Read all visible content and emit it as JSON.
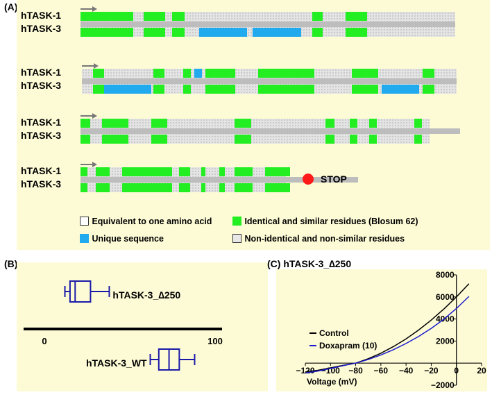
{
  "panel_a": {
    "label": "(A)",
    "rows": [
      {
        "top_label": "hTASK-1",
        "bottom_label": "hTASK-3",
        "green_top": [
          [
            0,
            14
          ],
          [
            16.8,
            22.6
          ],
          [
            24.4,
            27.8
          ],
          [
            61.8,
            64.6
          ],
          [
            70.8,
            76.4
          ]
        ],
        "green_bottom": [
          [
            0,
            14
          ],
          [
            16.8,
            22.6
          ],
          [
            24.4,
            27.8
          ],
          [
            61.8,
            64.6
          ],
          [
            70.8,
            76.4
          ]
        ],
        "blue_top": [],
        "blue_bottom": [
          [
            31.6,
            44.4
          ],
          [
            46,
            58.8
          ]
        ],
        "noise_end": 100
      },
      {
        "top_label": "hTASK-1",
        "bottom_label": "hTASK-3",
        "green_top": [
          [
            3,
            6
          ],
          [
            19,
            22
          ],
          [
            27,
            29
          ],
          [
            33,
            41
          ],
          [
            47,
            62
          ],
          [
            72,
            79
          ],
          [
            91,
            94
          ]
        ],
        "green_bottom": [
          [
            3,
            6
          ],
          [
            19,
            22
          ],
          [
            27,
            29
          ],
          [
            33,
            41
          ],
          [
            47,
            62
          ],
          [
            72,
            79
          ],
          [
            91,
            94
          ]
        ],
        "blue_top": [
          [
            30,
            32
          ]
        ],
        "blue_bottom": [
          [
            6,
            18.6
          ],
          [
            80,
            90
          ]
        ],
        "noise_end": 100
      },
      {
        "top_label": "hTASK-1",
        "bottom_label": "hTASK-3",
        "green_top": [
          [
            0,
            2.6
          ],
          [
            5.6,
            12.6
          ],
          [
            18.6,
            22.8
          ],
          [
            40.6,
            45
          ],
          [
            64.6,
            67
          ],
          [
            71,
            73
          ],
          [
            76,
            78
          ],
          [
            88,
            90
          ]
        ],
        "green_bottom": [
          [
            0,
            2.6
          ],
          [
            5.6,
            12.6
          ],
          [
            18.6,
            22.8
          ],
          [
            40.6,
            45
          ],
          [
            64.6,
            67
          ],
          [
            71,
            73
          ],
          [
            76,
            78
          ],
          [
            88,
            90
          ]
        ],
        "blue_top": [],
        "blue_bottom": [],
        "noise_end": 92
      },
      {
        "top_label": "hTASK-1",
        "bottom_label": "hTASK-3",
        "green_top": [
          [
            0,
            2.6
          ],
          [
            5.6,
            10.6
          ],
          [
            15,
            33
          ],
          [
            35.6,
            39.6
          ],
          [
            43.6,
            45
          ],
          [
            50,
            52
          ],
          [
            55.6,
            62
          ],
          [
            66.6,
            75.6
          ]
        ],
        "green_bottom": [
          [
            0,
            2.6
          ],
          [
            5.6,
            10.6
          ],
          [
            15,
            33
          ],
          [
            35.6,
            39.6
          ],
          [
            43.6,
            45
          ],
          [
            50,
            52
          ],
          [
            55.6,
            62
          ],
          [
            66.6,
            75.6
          ]
        ],
        "blue_top": [],
        "blue_bottom": [],
        "noise_end": 74,
        "stop_label": "STOP"
      }
    ],
    "legend": {
      "equivalent": "Equivalent to one amino acid",
      "identical": "Identical and similar residues (Blosum 62)",
      "unique": "Unique sequence",
      "nonidentical": "Non-identical and non-similar residues"
    },
    "colors": {
      "green": "#22ee22",
      "blue": "#22aaee",
      "grey": "#bdbdbd",
      "bg": "#fdfbd6",
      "stop": "#ff1a1a"
    }
  },
  "panel_b": {
    "label": "(B)",
    "axis_ticks": [
      "0",
      "100"
    ],
    "boxes": [
      {
        "name": "hTASK-3_∆250",
        "whisker_low": 12,
        "q1": 15,
        "median": 18,
        "q3": 27,
        "whisker_high": 38
      },
      {
        "name": "hTASK-3_WT",
        "whisker_low": 62,
        "q1": 67,
        "median": 73,
        "q3": 79,
        "whisker_high": 88
      }
    ],
    "axis_max": 100,
    "color": "#1a1aa8"
  },
  "panel_c": {
    "label": "(C)",
    "title": "hTASK-3_∆250",
    "xlabel": "Voltage (mV)",
    "x_ticks": [
      "−120",
      "−100",
      "−80",
      "−60",
      "−40",
      "−20",
      "0",
      "20"
    ],
    "y_ticks": [
      "8000",
      "6000",
      "4000",
      "2000",
      "−2000"
    ],
    "legend": [
      {
        "name": "Control",
        "color": "#000000"
      },
      {
        "name": "Doxapram (10)",
        "color": "#1a1acc"
      }
    ]
  },
  "chart_data": {
    "type": "line",
    "title": "hTASK-3_∆250",
    "xlabel": "Voltage (mV)",
    "ylabel": "",
    "xlim": [
      -120,
      20
    ],
    "ylim": [
      -2000,
      8000
    ],
    "series": [
      {
        "name": "Control",
        "x": [
          -120,
          -110,
          -100,
          -90,
          -80,
          -70,
          -60,
          -50,
          -40,
          -30,
          -20,
          -10,
          0,
          10
        ],
        "values": [
          -800,
          -650,
          -430,
          -200,
          0,
          400,
          900,
          1500,
          2200,
          3000,
          3900,
          4900,
          6000,
          7200
        ]
      },
      {
        "name": "Doxapram (10)",
        "x": [
          -120,
          -110,
          -100,
          -90,
          -80,
          -70,
          -60,
          -50,
          -40,
          -30,
          -20,
          -10,
          0,
          10
        ],
        "values": [
          -900,
          -720,
          -480,
          -230,
          0,
          330,
          740,
          1220,
          1780,
          2420,
          3150,
          3980,
          4950,
          6050
        ]
      }
    ]
  }
}
